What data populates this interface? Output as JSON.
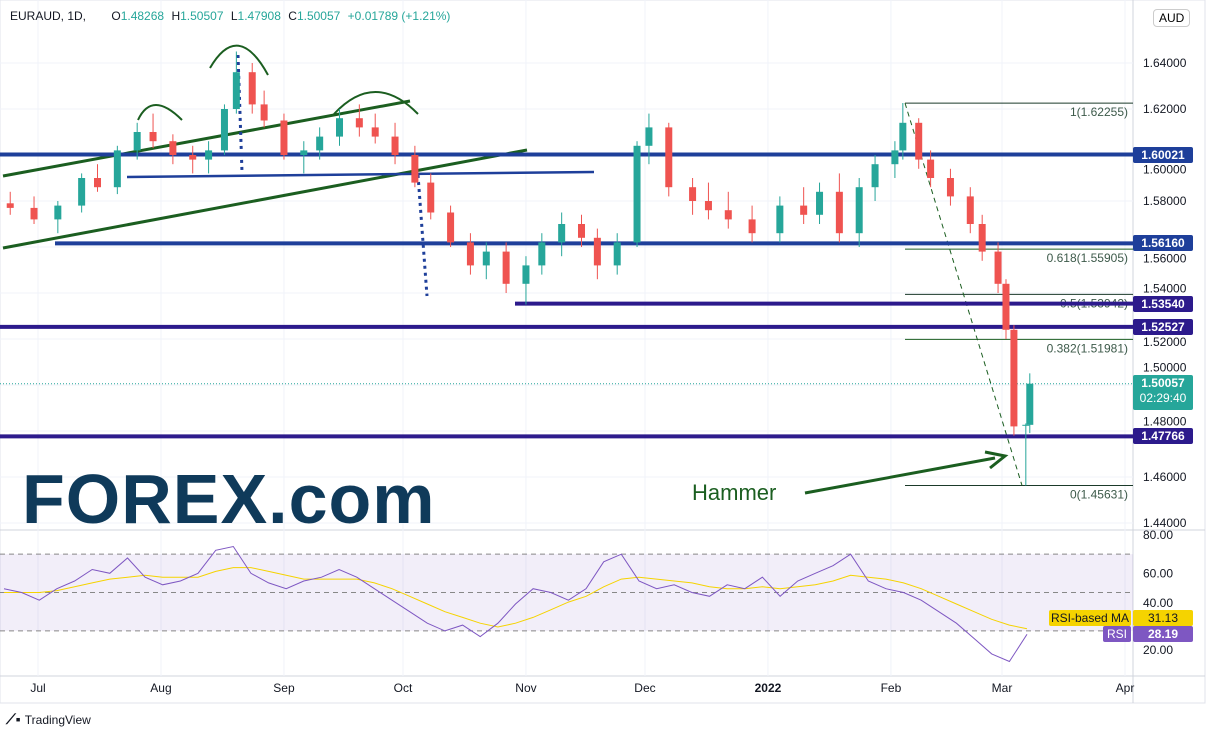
{
  "header": {
    "symbol": "EURAUD, 1D,",
    "open_label": "O",
    "open": "1.48268",
    "high_label": "H",
    "high": "1.50507",
    "low_label": "L",
    "low": "1.47908",
    "close_label": "C",
    "close": "1.50057",
    "change": "+0.01789 (+1.21%)",
    "currency": "AUD"
  },
  "colors": {
    "up": "#26a69a",
    "down": "#ef5350",
    "level_blue": "#1e3f9a",
    "level_purple": "#2c1a8c",
    "trend_green": "#1b5e20",
    "rsi": "#7e57c2",
    "rsi_ma": "#f5d300"
  },
  "chart_data": {
    "type": "candlestick",
    "symbol": "EURAUD",
    "interval": "1D",
    "ylim": [
      1.44,
      1.65
    ],
    "y_ticks": [
      "1.64000",
      "1.62000",
      "1.60000",
      "1.58000",
      "1.56000",
      "1.54000",
      "1.52000",
      "1.50000",
      "1.48000",
      "1.46000",
      "1.44000"
    ],
    "x_ticks": [
      "Jul",
      "Aug",
      "Sep",
      "Oct",
      "Nov",
      "Dec",
      "2022",
      "Feb",
      "Mar",
      "Apr"
    ],
    "x_tick_dates": [
      "2021-07-01",
      "2021-08-01",
      "2021-09-01",
      "2021-10-01",
      "2021-11-01",
      "2021-12-01",
      "2022-01-01",
      "2022-02-01",
      "2022-03-01",
      "2022-04-01"
    ],
    "bars": [
      [
        "2021-06-24",
        1.579,
        1.584,
        1.574,
        1.577
      ],
      [
        "2021-06-30",
        1.577,
        1.582,
        1.57,
        1.572
      ],
      [
        "2021-07-06",
        1.572,
        1.58,
        1.566,
        1.578
      ],
      [
        "2021-07-12",
        1.578,
        1.592,
        1.575,
        1.59
      ],
      [
        "2021-07-16",
        1.59,
        1.596,
        1.584,
        1.586
      ],
      [
        "2021-07-21",
        1.586,
        1.604,
        1.583,
        1.602
      ],
      [
        "2021-07-26",
        1.602,
        1.614,
        1.598,
        1.61
      ],
      [
        "2021-07-30",
        1.61,
        1.618,
        1.603,
        1.606
      ],
      [
        "2021-08-04",
        1.606,
        1.609,
        1.596,
        1.6
      ],
      [
        "2021-08-09",
        1.6,
        1.604,
        1.592,
        1.598
      ],
      [
        "2021-08-13",
        1.598,
        1.606,
        1.592,
        1.602
      ],
      [
        "2021-08-17",
        1.602,
        1.622,
        1.6,
        1.62
      ],
      [
        "2021-08-20",
        1.62,
        1.645,
        1.618,
        1.636
      ],
      [
        "2021-08-24",
        1.636,
        1.64,
        1.618,
        1.622
      ],
      [
        "2021-08-27",
        1.622,
        1.628,
        1.612,
        1.615
      ],
      [
        "2021-09-01",
        1.615,
        1.618,
        1.598,
        1.6
      ],
      [
        "2021-09-06",
        1.6,
        1.606,
        1.592,
        1.602
      ],
      [
        "2021-09-10",
        1.602,
        1.612,
        1.598,
        1.608
      ],
      [
        "2021-09-15",
        1.608,
        1.62,
        1.604,
        1.616
      ],
      [
        "2021-09-20",
        1.616,
        1.622,
        1.608,
        1.612
      ],
      [
        "2021-09-24",
        1.612,
        1.618,
        1.605,
        1.608
      ],
      [
        "2021-09-29",
        1.608,
        1.614,
        1.596,
        1.6
      ],
      [
        "2021-10-04",
        1.6,
        1.604,
        1.586,
        1.588
      ],
      [
        "2021-10-08",
        1.588,
        1.592,
        1.572,
        1.575
      ],
      [
        "2021-10-13",
        1.575,
        1.578,
        1.56,
        1.562
      ],
      [
        "2021-10-18",
        1.562,
        1.566,
        1.548,
        1.552
      ],
      [
        "2021-10-22",
        1.552,
        1.562,
        1.546,
        1.558
      ],
      [
        "2021-10-27",
        1.558,
        1.562,
        1.54,
        1.544
      ],
      [
        "2021-11-01",
        1.544,
        1.556,
        1.535,
        1.552
      ],
      [
        "2021-11-05",
        1.552,
        1.566,
        1.548,
        1.562
      ],
      [
        "2021-11-10",
        1.562,
        1.575,
        1.556,
        1.57
      ],
      [
        "2021-11-15",
        1.57,
        1.574,
        1.56,
        1.564
      ],
      [
        "2021-11-19",
        1.564,
        1.568,
        1.546,
        1.552
      ],
      [
        "2021-11-24",
        1.552,
        1.566,
        1.548,
        1.562
      ],
      [
        "2021-11-29",
        1.562,
        1.606,
        1.56,
        1.604
      ],
      [
        "2021-12-02",
        1.604,
        1.618,
        1.596,
        1.612
      ],
      [
        "2021-12-07",
        1.612,
        1.614,
        1.582,
        1.586
      ],
      [
        "2021-12-13",
        1.586,
        1.59,
        1.574,
        1.58
      ],
      [
        "2021-12-17",
        1.58,
        1.588,
        1.572,
        1.576
      ],
      [
        "2021-12-22",
        1.576,
        1.584,
        1.568,
        1.572
      ],
      [
        "2021-12-28",
        1.572,
        1.578,
        1.562,
        1.566
      ],
      [
        "2022-01-04",
        1.566,
        1.582,
        1.562,
        1.578
      ],
      [
        "2022-01-10",
        1.578,
        1.586,
        1.57,
        1.574
      ],
      [
        "2022-01-14",
        1.574,
        1.588,
        1.57,
        1.584
      ],
      [
        "2022-01-19",
        1.584,
        1.592,
        1.562,
        1.566
      ],
      [
        "2022-01-24",
        1.566,
        1.59,
        1.56,
        1.586
      ],
      [
        "2022-01-28",
        1.586,
        1.6,
        1.58,
        1.596
      ],
      [
        "2022-02-02",
        1.596,
        1.606,
        1.59,
        1.602
      ],
      [
        "2022-02-04",
        1.602,
        1.6226,
        1.598,
        1.614
      ],
      [
        "2022-02-08",
        1.614,
        1.616,
        1.594,
        1.598
      ],
      [
        "2022-02-11",
        1.598,
        1.602,
        1.586,
        1.59
      ],
      [
        "2022-02-16",
        1.59,
        1.594,
        1.578,
        1.582
      ],
      [
        "2022-02-21",
        1.582,
        1.586,
        1.566,
        1.57
      ],
      [
        "2022-02-24",
        1.57,
        1.574,
        1.554,
        1.558
      ],
      [
        "2022-02-28",
        1.558,
        1.562,
        1.54,
        1.544
      ],
      [
        "2022-03-02",
        1.544,
        1.546,
        1.52,
        1.524
      ],
      [
        "2022-03-04",
        1.524,
        1.526,
        1.478,
        1.482
      ],
      [
        "2022-03-07",
        1.4827,
        1.4833,
        1.4563,
        1.4827
      ],
      [
        "2022-03-08",
        1.48268,
        1.50507,
        1.47908,
        1.50057
      ]
    ],
    "horizontal_levels": [
      {
        "label": "1.60021",
        "value": 1.60021,
        "color": "#1e3f9a"
      },
      {
        "label": "1.56160",
        "value": 1.5616,
        "color": "#1e3f9a"
      },
      {
        "label": "1.53540",
        "value": 1.5354,
        "color": "#2c1a8c"
      },
      {
        "label": "1.52527",
        "value": 1.52527,
        "color": "#2c1a8c"
      },
      {
        "label": "1.47766",
        "value": 1.47766,
        "color": "#2c1a8c"
      }
    ],
    "fibonacci": [
      {
        "label": "1(1.62255)",
        "value": 1.62255
      },
      {
        "label": "0.618(1.55905)",
        "value": 1.55905
      },
      {
        "label": "0.5(1.53942)",
        "value": 1.53942
      },
      {
        "label": "0.382(1.51981)",
        "value": 1.51981
      },
      {
        "label": "0(1.45631)",
        "value": 1.45631
      }
    ],
    "last_price": {
      "value": "1.50057",
      "countdown": "02:29:40"
    },
    "annotation": "Hammer",
    "rsi": {
      "ylim": [
        10,
        85
      ],
      "y_ticks": [
        "80.00",
        "60.00",
        "40.00",
        "20.00"
      ],
      "bands": [
        70,
        50,
        30
      ],
      "rsi_label": "RSI",
      "rsi_value": "28.19",
      "ma_label": "RSI-based MA",
      "ma_value": "31.13",
      "rsi_series": [
        52,
        50,
        46,
        52,
        56,
        62,
        60,
        68,
        58,
        54,
        56,
        60,
        72,
        74,
        60,
        55,
        52,
        56,
        58,
        62,
        58,
        52,
        46,
        40,
        34,
        30,
        33,
        27,
        34,
        44,
        52,
        50,
        46,
        52,
        66,
        70,
        56,
        52,
        54,
        50,
        48,
        54,
        52,
        58,
        48,
        56,
        60,
        64,
        70,
        56,
        52,
        50,
        46,
        40,
        34,
        26,
        18,
        14,
        28.19
      ],
      "ma_series": [
        50,
        50,
        50,
        51,
        53,
        55,
        57,
        58,
        59,
        58,
        58,
        58,
        61,
        63,
        63,
        61,
        59,
        57,
        57,
        57,
        57,
        55,
        52,
        48,
        44,
        40,
        37,
        34,
        32,
        34,
        37,
        41,
        45,
        48,
        53,
        57,
        58,
        57,
        56,
        55,
        53,
        52,
        52,
        53,
        52,
        53,
        54,
        56,
        59,
        58,
        57,
        55,
        52,
        48,
        44,
        40,
        36,
        33,
        31.13
      ]
    }
  },
  "logo": {
    "text": "FOREX.com"
  },
  "footer": {
    "brand": "TradingView"
  }
}
